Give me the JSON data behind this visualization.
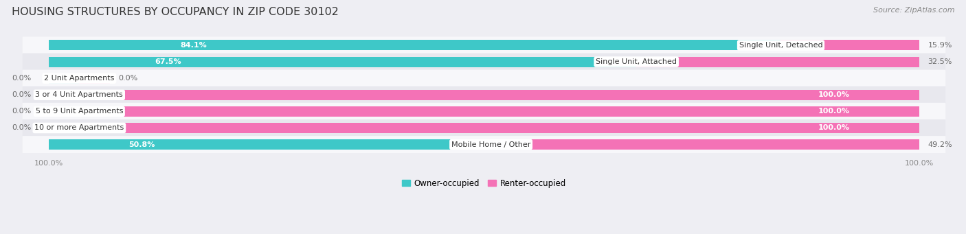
{
  "title": "HOUSING STRUCTURES BY OCCUPANCY IN ZIP CODE 30102",
  "source": "Source: ZipAtlas.com",
  "categories": [
    "Single Unit, Detached",
    "Single Unit, Attached",
    "2 Unit Apartments",
    "3 or 4 Unit Apartments",
    "5 to 9 Unit Apartments",
    "10 or more Apartments",
    "Mobile Home / Other"
  ],
  "owner_pct": [
    84.1,
    67.5,
    0.0,
    0.0,
    0.0,
    0.0,
    50.8
  ],
  "renter_pct": [
    15.9,
    32.5,
    0.0,
    100.0,
    100.0,
    100.0,
    49.2
  ],
  "owner_color": "#3ec8c8",
  "renter_color": "#f472b6",
  "owner_label": "Owner-occupied",
  "renter_label": "Renter-occupied",
  "bg_color": "#eeeef3",
  "row_bg_odd": "#f7f7fa",
  "row_bg_even": "#e8e8ee",
  "title_fontsize": 11.5,
  "bar_height": 0.62,
  "pct_label_color_inside": "#ffffff",
  "pct_label_color_outside": "#666666",
  "axis_tick_color": "#888888",
  "cat_label_fontsize": 8.0,
  "pct_fontsize": 8.0,
  "title_color": "#333333",
  "source_color": "#888888"
}
